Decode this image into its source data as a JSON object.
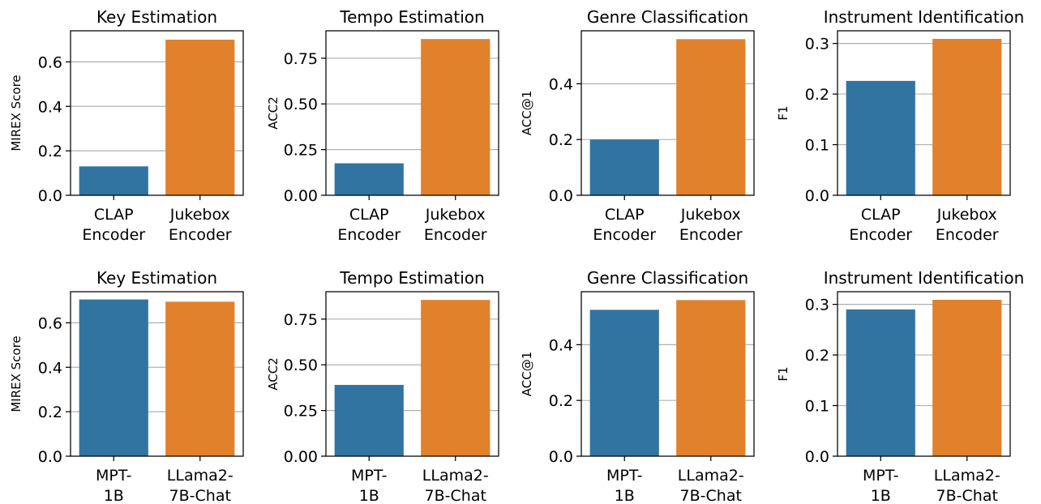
{
  "chart_data": [
    {
      "type": "bar",
      "title": "Key Estimation",
      "ylabel": "MIREX Score",
      "categories": [
        [
          "CLAP",
          "Encoder"
        ],
        [
          "Jukebox",
          "Encoder"
        ]
      ],
      "values": [
        0.13,
        0.7
      ],
      "colors": [
        "#3274a1",
        "#e1812c"
      ],
      "ylim": [
        0,
        0.74
      ],
      "yticks": [
        0.0,
        0.2,
        0.4,
        0.6
      ],
      "tick_format": 1,
      "grid": "y"
    },
    {
      "type": "bar",
      "title": "Tempo Estimation",
      "ylabel": "ACC2",
      "categories": [
        [
          "CLAP",
          "Encoder"
        ],
        [
          "Jukebox",
          "Encoder"
        ]
      ],
      "values": [
        0.175,
        0.855
      ],
      "colors": [
        "#3274a1",
        "#e1812c"
      ],
      "ylim": [
        0,
        0.9
      ],
      "yticks": [
        0.0,
        0.25,
        0.5,
        0.75
      ],
      "tick_format": 2,
      "grid": "y"
    },
    {
      "type": "bar",
      "title": "Genre Classification",
      "ylabel": "ACC@1",
      "categories": [
        [
          "CLAP",
          "Encoder"
        ],
        [
          "Jukebox",
          "Encoder"
        ]
      ],
      "values": [
        0.2,
        0.56
      ],
      "colors": [
        "#3274a1",
        "#e1812c"
      ],
      "ylim": [
        0,
        0.59
      ],
      "yticks": [
        0.0,
        0.2,
        0.4
      ],
      "tick_format": 1,
      "grid": "y"
    },
    {
      "type": "bar",
      "title": "Instrument Identification",
      "ylabel": "F1",
      "categories": [
        [
          "CLAP",
          "Encoder"
        ],
        [
          "Jukebox",
          "Encoder"
        ]
      ],
      "values": [
        0.226,
        0.309
      ],
      "colors": [
        "#3274a1",
        "#e1812c"
      ],
      "ylim": [
        0,
        0.325
      ],
      "yticks": [
        0.0,
        0.1,
        0.2,
        0.3
      ],
      "tick_format": 1,
      "grid": "y"
    },
    {
      "type": "bar",
      "title": "Key Estimation",
      "ylabel": "MIREX Score",
      "categories": [
        [
          "MPT-",
          "1B"
        ],
        [
          "LLama2-",
          "7B-Chat"
        ]
      ],
      "values": [
        0.705,
        0.695
      ],
      "colors": [
        "#3274a1",
        "#e1812c"
      ],
      "ylim": [
        0,
        0.74
      ],
      "yticks": [
        0.0,
        0.2,
        0.4,
        0.6
      ],
      "tick_format": 1,
      "grid": "y"
    },
    {
      "type": "bar",
      "title": "Tempo Estimation",
      "ylabel": "ACC2",
      "categories": [
        [
          "MPT-",
          "1B"
        ],
        [
          "LLama2-",
          "7B-Chat"
        ]
      ],
      "values": [
        0.39,
        0.855
      ],
      "colors": [
        "#3274a1",
        "#e1812c"
      ],
      "ylim": [
        0,
        0.9
      ],
      "yticks": [
        0.0,
        0.25,
        0.5,
        0.75
      ],
      "tick_format": 2,
      "grid": "y"
    },
    {
      "type": "bar",
      "title": "Genre Classification",
      "ylabel": "ACC@1",
      "categories": [
        [
          "MPT-",
          "1B"
        ],
        [
          "LLama2-",
          "7B-Chat"
        ]
      ],
      "values": [
        0.525,
        0.56
      ],
      "colors": [
        "#3274a1",
        "#e1812c"
      ],
      "ylim": [
        0,
        0.59
      ],
      "yticks": [
        0.0,
        0.2,
        0.4
      ],
      "tick_format": 1,
      "grid": "y"
    },
    {
      "type": "bar",
      "title": "Instrument Identification",
      "ylabel": "F1",
      "categories": [
        [
          "MPT-",
          "1B"
        ],
        [
          "LLama2-",
          "7B-Chat"
        ]
      ],
      "values": [
        0.29,
        0.309
      ],
      "colors": [
        "#3274a1",
        "#e1812c"
      ],
      "ylim": [
        0,
        0.325
      ],
      "yticks": [
        0.0,
        0.1,
        0.2,
        0.3
      ],
      "tick_format": 1,
      "grid": "y"
    }
  ]
}
